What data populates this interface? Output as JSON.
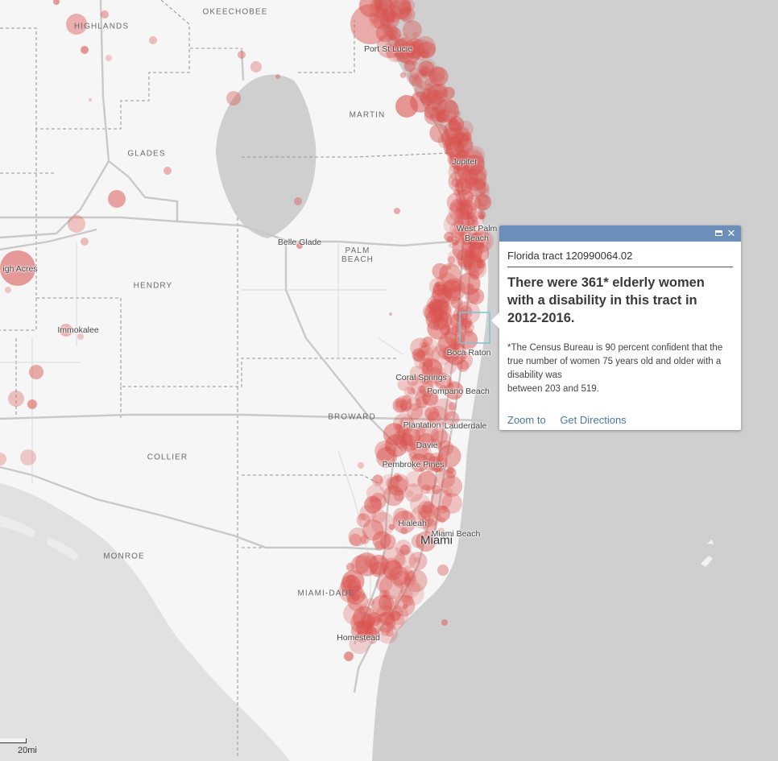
{
  "map": {
    "county_labels": [
      {
        "name": "okeechobee-county-label",
        "text": "OKEECHOBEE"
      },
      {
        "name": "highlands-county-label",
        "text": "HIGHLANDS"
      },
      {
        "name": "martin-county-label",
        "text": "MARTIN"
      },
      {
        "name": "glades-county-label",
        "text": "GLADES"
      },
      {
        "name": "palm-beach-county-label",
        "text": "PALM\nBEACH"
      },
      {
        "name": "hendry-county-label",
        "text": "HENDRY"
      },
      {
        "name": "broward-county-label",
        "text": "BROWARD"
      },
      {
        "name": "collier-county-label",
        "text": "COLLIER"
      },
      {
        "name": "monroe-county-label",
        "text": "MONROE"
      },
      {
        "name": "miami-dade-county-label",
        "text": "MIAMI-DADE"
      }
    ],
    "city_labels": [
      {
        "name": "port-st-lucie-label",
        "text": "Port St Lucie"
      },
      {
        "name": "jupiter-label",
        "text": "Jupiter"
      },
      {
        "name": "west-palm-beach-label",
        "text": "West Palm\nBeach"
      },
      {
        "name": "belle-glade-label",
        "text": "Belle Glade"
      },
      {
        "name": "lehigh-acres-label",
        "text": "igh Acres"
      },
      {
        "name": "immokalee-label",
        "text": "Immokalee"
      },
      {
        "name": "boca-raton-label",
        "text": "Boca Raton"
      },
      {
        "name": "coral-springs-label",
        "text": "Coral Springs"
      },
      {
        "name": "pompano-beach-label",
        "text": "Pompano Beach"
      },
      {
        "name": "plantation-label",
        "text": "Plantation"
      },
      {
        "name": "fort-lauderdale-label",
        "text": "Lauderdale"
      },
      {
        "name": "davie-label",
        "text": "Davie"
      },
      {
        "name": "pembroke-pines-label",
        "text": "Pembroke Pines"
      },
      {
        "name": "hialeah-label",
        "text": "Hialeah"
      },
      {
        "name": "miami-beach-label",
        "text": "Miami Beach"
      },
      {
        "name": "miami-label",
        "text": "Miami"
      },
      {
        "name": "homestead-label",
        "text": "Homestead"
      }
    ],
    "colors": {
      "water": "#cfcfcf",
      "land": "#f6f6f6",
      "circle_fill": "#d9534f",
      "highlight": "#7fc4d4",
      "popup_header": "#6c8ebb"
    }
  },
  "popup": {
    "title": "Florida tract 120990064.02",
    "headline": "There were 361* elderly women with a disability in this tract in 2012-2016.",
    "note_line1": "*The Census Bureau is 90 percent confident that the true number of women 75 years old and older with a disability was",
    "note_line2": "between 203 and 519.",
    "zoom_label": "Zoom to",
    "directions_label": "Get Directions",
    "maximize_icon": "maximize-icon",
    "close_icon": "close-icon"
  },
  "scale": {
    "label": "20mi"
  }
}
